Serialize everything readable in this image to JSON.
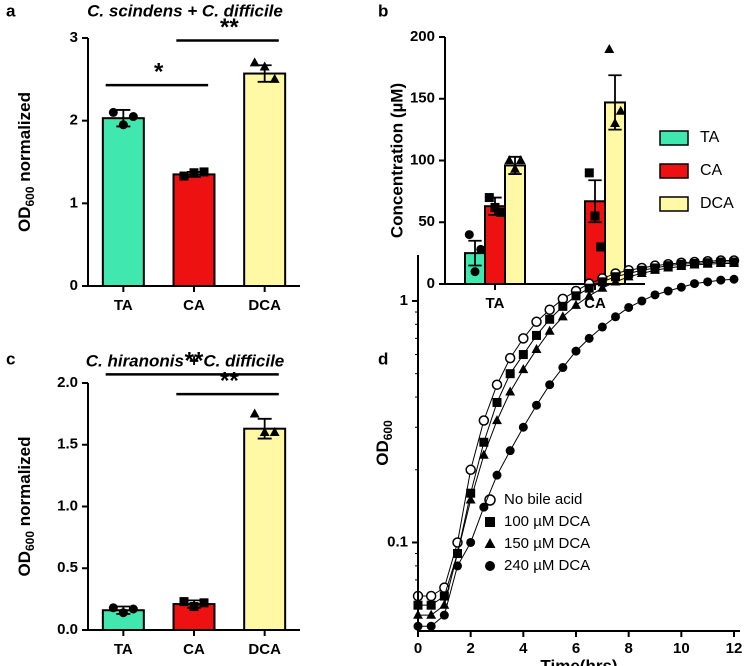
{
  "chart_data": [
    {
      "type": "bar",
      "panel": "a",
      "title": "C. scindens + C. difficile",
      "ylabel": {
        "main": "OD",
        "sub": "600",
        "rest": " normalized"
      },
      "categories": [
        "TA",
        "CA",
        "DCA"
      ],
      "values": [
        2.03,
        1.35,
        2.57
      ],
      "errors": [
        0.1,
        0.03,
        0.1
      ],
      "points": [
        [
          2.1,
          1.95,
          2.05
        ],
        [
          1.33,
          1.37,
          1.38
        ],
        [
          2.7,
          2.65,
          2.5
        ]
      ],
      "colors": [
        "#40e8b0",
        "#ee1111",
        "#fff9a6"
      ],
      "markers": [
        "circle",
        "square",
        "triangle"
      ],
      "ylim": [
        0,
        3
      ],
      "yticks": [
        0,
        1,
        2,
        3
      ],
      "annotations": [
        {
          "text": "*",
          "from": "TA",
          "to": "CA"
        },
        {
          "text": "**",
          "from": "CA",
          "to": "DCA"
        }
      ]
    },
    {
      "type": "grouped_bar",
      "panel": "b",
      "ylabel": "Concentration (µM)",
      "categories": [
        "TA",
        "CA"
      ],
      "series": [
        {
          "name": "TA",
          "color": "#40e8b0",
          "marker": "circle",
          "values": [
            25,
            null
          ],
          "errors": [
            10,
            null
          ],
          "points": [
            [
              40,
              10,
              28
            ],
            null
          ]
        },
        {
          "name": "CA",
          "color": "#ee1111",
          "marker": "square",
          "values": [
            63,
            67
          ],
          "errors": [
            7,
            17
          ],
          "points": [
            [
              70,
              62,
              58
            ],
            [
              90,
              55,
              30
            ]
          ]
        },
        {
          "name": "DCA",
          "color": "#fff9a6",
          "marker": "triangle",
          "values": [
            96,
            147
          ],
          "errors": [
            7,
            22
          ],
          "points": [
            [
              100,
              93,
              100
            ],
            [
              190,
              130,
              140
            ]
          ]
        }
      ],
      "ylim": [
        0,
        200
      ],
      "yticks": [
        0,
        50,
        100,
        150,
        200
      ]
    },
    {
      "type": "bar",
      "panel": "c",
      "title": "C. hiranonis + C. difficile",
      "ylabel": {
        "main": "OD",
        "sub": "600",
        "rest": " normalized"
      },
      "categories": [
        "TA",
        "CA",
        "DCA"
      ],
      "values": [
        0.16,
        0.21,
        1.63
      ],
      "errors": [
        0.03,
        0.03,
        0.08
      ],
      "points": [
        [
          0.18,
          0.14,
          0.17
        ],
        [
          0.23,
          0.19,
          0.22
        ],
        [
          1.75,
          1.6,
          1.6
        ]
      ],
      "colors": [
        "#40e8b0",
        "#ee1111",
        "#fff9a6"
      ],
      "markers": [
        "circle",
        "square",
        "triangle"
      ],
      "ylim": [
        0,
        2
      ],
      "yticks": [
        {
          "value": 0,
          "label": "0.0"
        },
        0.5,
        {
          "value": 1,
          "label": "1.0"
        },
        1.5,
        {
          "value": 2,
          "label": "2.0"
        }
      ],
      "annotations": [
        {
          "text": "**",
          "from": "TA",
          "to": "DCA"
        },
        {
          "text": "**",
          "from": "CA",
          "to": "DCA"
        }
      ]
    },
    {
      "type": "line",
      "panel": "d",
      "ylabel": {
        "main": "OD",
        "sub": "600"
      },
      "xlabel": "Time(hrs)",
      "log_y": true,
      "x": [
        0,
        0.5,
        1,
        1.5,
        2,
        2.5,
        3,
        3.5,
        4,
        4.5,
        5,
        5.5,
        6,
        6.5,
        7,
        7.5,
        8,
        8.5,
        9,
        9.5,
        10,
        10.5,
        11,
        11.5,
        12
      ],
      "series": [
        {
          "name": "No bile acid",
          "marker": "open-circle",
          "values": [
            0.06,
            0.06,
            0.065,
            0.1,
            0.2,
            0.32,
            0.45,
            0.58,
            0.7,
            0.82,
            0.92,
            1.02,
            1.1,
            1.18,
            1.24,
            1.3,
            1.34,
            1.37,
            1.4,
            1.42,
            1.44,
            1.45,
            1.46,
            1.47,
            1.47
          ]
        },
        {
          "name": "100 µM DCA",
          "marker": "square",
          "values": [
            0.055,
            0.055,
            0.06,
            0.09,
            0.16,
            0.26,
            0.38,
            0.5,
            0.6,
            0.72,
            0.84,
            0.95,
            1.05,
            1.13,
            1.2,
            1.26,
            1.3,
            1.34,
            1.37,
            1.4,
            1.42,
            1.43,
            1.44,
            1.45,
            1.45
          ]
        },
        {
          "name": "150 µM DCA",
          "marker": "triangle",
          "values": [
            0.05,
            0.05,
            0.055,
            0.09,
            0.15,
            0.23,
            0.32,
            0.42,
            0.52,
            0.63,
            0.75,
            0.86,
            0.96,
            1.05,
            1.13,
            1.2,
            1.26,
            1.3,
            1.34,
            1.37,
            1.39,
            1.41,
            1.42,
            1.43,
            1.43
          ]
        },
        {
          "name": "240 µM DCA",
          "marker": "circle",
          "values": [
            0.045,
            0.045,
            0.05,
            0.08,
            0.1,
            0.14,
            0.19,
            0.24,
            0.3,
            0.37,
            0.45,
            0.53,
            0.62,
            0.7,
            0.78,
            0.86,
            0.94,
            1.0,
            1.06,
            1.1,
            1.14,
            1.18,
            1.2,
            1.22,
            1.23
          ]
        }
      ],
      "xlim": [
        0,
        12
      ],
      "xticks": [
        0,
        2,
        4,
        6,
        8,
        10,
        12
      ],
      "ylim": [
        0.043,
        1.55
      ],
      "yticks": [
        0.1,
        1
      ]
    }
  ]
}
